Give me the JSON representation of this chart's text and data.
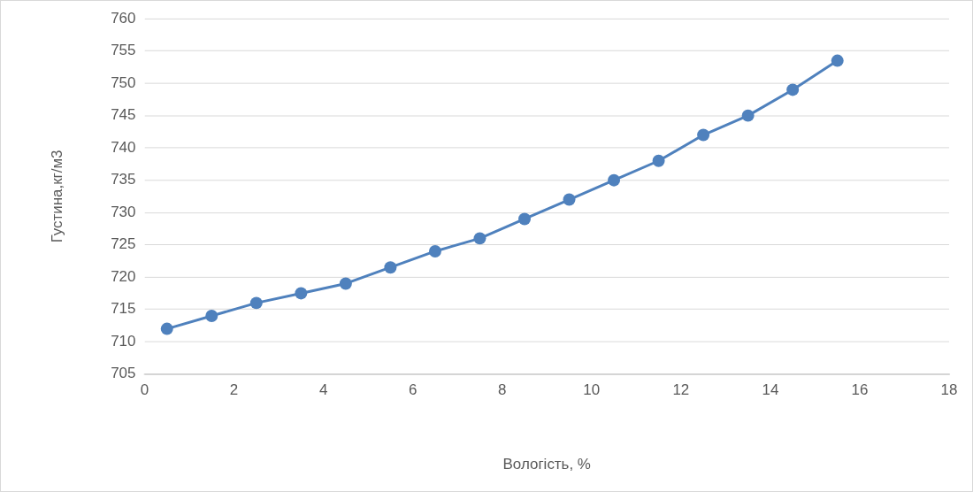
{
  "chart_data": {
    "type": "line",
    "xlabel": "Вологість, %",
    "ylabel": "Густина,кг/м3",
    "x": [
      0.5,
      1.5,
      2.5,
      3.5,
      4.5,
      5.5,
      6.5,
      7.5,
      8.5,
      9.5,
      10.5,
      11.5,
      12.5,
      13.5,
      14.5,
      15.5
    ],
    "series": [
      {
        "color": "#4f81bd",
        "values": [
          712,
          714,
          716,
          717.5,
          719,
          721.5,
          724,
          726,
          729,
          732,
          735,
          738,
          742,
          745,
          749,
          753.5
        ]
      }
    ],
    "xlim": [
      0,
      18
    ],
    "xticks": [
      0,
      2,
      4,
      6,
      8,
      10,
      12,
      14,
      16,
      18
    ],
    "ylim": [
      705,
      760
    ],
    "yticks": [
      705,
      710,
      715,
      720,
      725,
      730,
      735,
      740,
      745,
      750,
      755,
      760
    ],
    "grid": "y",
    "legend": false,
    "marker": "circle",
    "line_style": "solid"
  }
}
